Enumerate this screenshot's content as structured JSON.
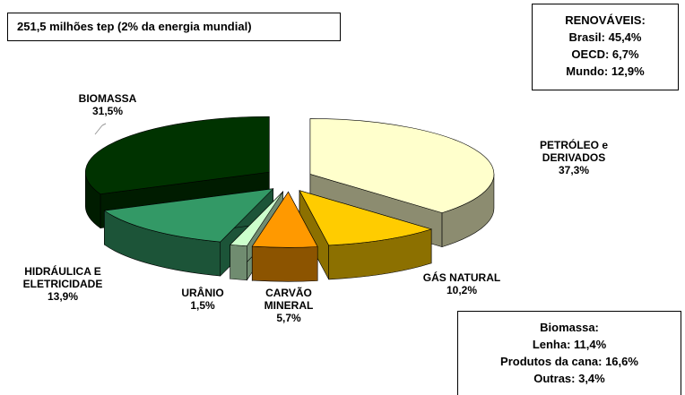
{
  "chart_data": {
    "type": "pie3d",
    "title": "251,5 milhões tep (2% da energia mundial)",
    "categories": [
      "PETRÓLEO e\nDERIVADOS",
      "GÁS NATURAL",
      "CARVÃO\nMINERAL",
      "URÂNIO",
      "HIDRÁULICA E\nELETRICIDADE",
      "BIOMASSA"
    ],
    "values": [
      37.3,
      10.2,
      5.7,
      1.5,
      13.9,
      31.5
    ],
    "value_labels": [
      "37,3%",
      "10,2%",
      "5,7%",
      "1,5%",
      "13,9%",
      "31,5%"
    ],
    "colors": [
      "#ffffcc",
      "#ffcc00",
      "#ff9900",
      "#ccffcc",
      "#339966",
      "#003300"
    ],
    "renewables_box": [
      "RENOVÁVEIS:",
      "Brasil: 45,4%",
      "OECD: 6,7%",
      "Mundo: 12,9%"
    ],
    "biomass_box": [
      "Biomassa:",
      "Lenha: 11,4%",
      "Produtos da cana: 16,6%",
      "Outras: 3,4%"
    ]
  }
}
